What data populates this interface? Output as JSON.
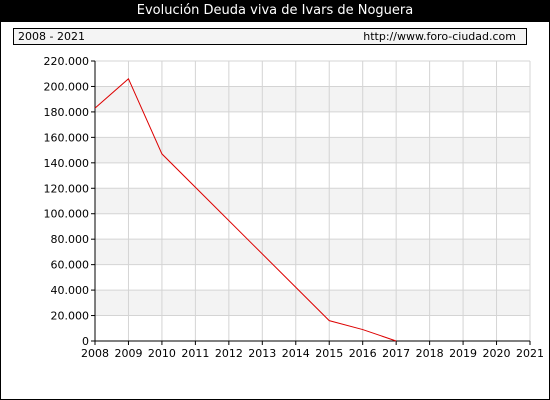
{
  "title": "Evolución Deuda viva de Ivars de Noguera",
  "period": "2008 - 2021",
  "url": "http://www.foro-ciudad.com",
  "chart_data": {
    "type": "line",
    "title": "Evolución Deuda viva de Ivars de Noguera",
    "xlabel": "",
    "ylabel": "",
    "x": [
      2008,
      2009,
      2010,
      2015,
      2016,
      2017
    ],
    "series": [
      {
        "values": [
          183000,
          206000,
          147000,
          16000,
          9000,
          0
        ]
      }
    ],
    "x_ticks": [
      "2008",
      "2009",
      "2010",
      "2011",
      "2012",
      "2013",
      "2014",
      "2015",
      "2016",
      "2017",
      "2018",
      "2019",
      "2020",
      "2021"
    ],
    "y_ticks": [
      "0",
      "20.000",
      "40.000",
      "60.000",
      "80.000",
      "100.000",
      "120.000",
      "140.000",
      "160.000",
      "180.000",
      "200.000",
      "220.000"
    ],
    "xlim": [
      2008,
      2021
    ],
    "ylim": [
      0,
      220000
    ],
    "grid": true,
    "line_color": "#dd0000"
  }
}
